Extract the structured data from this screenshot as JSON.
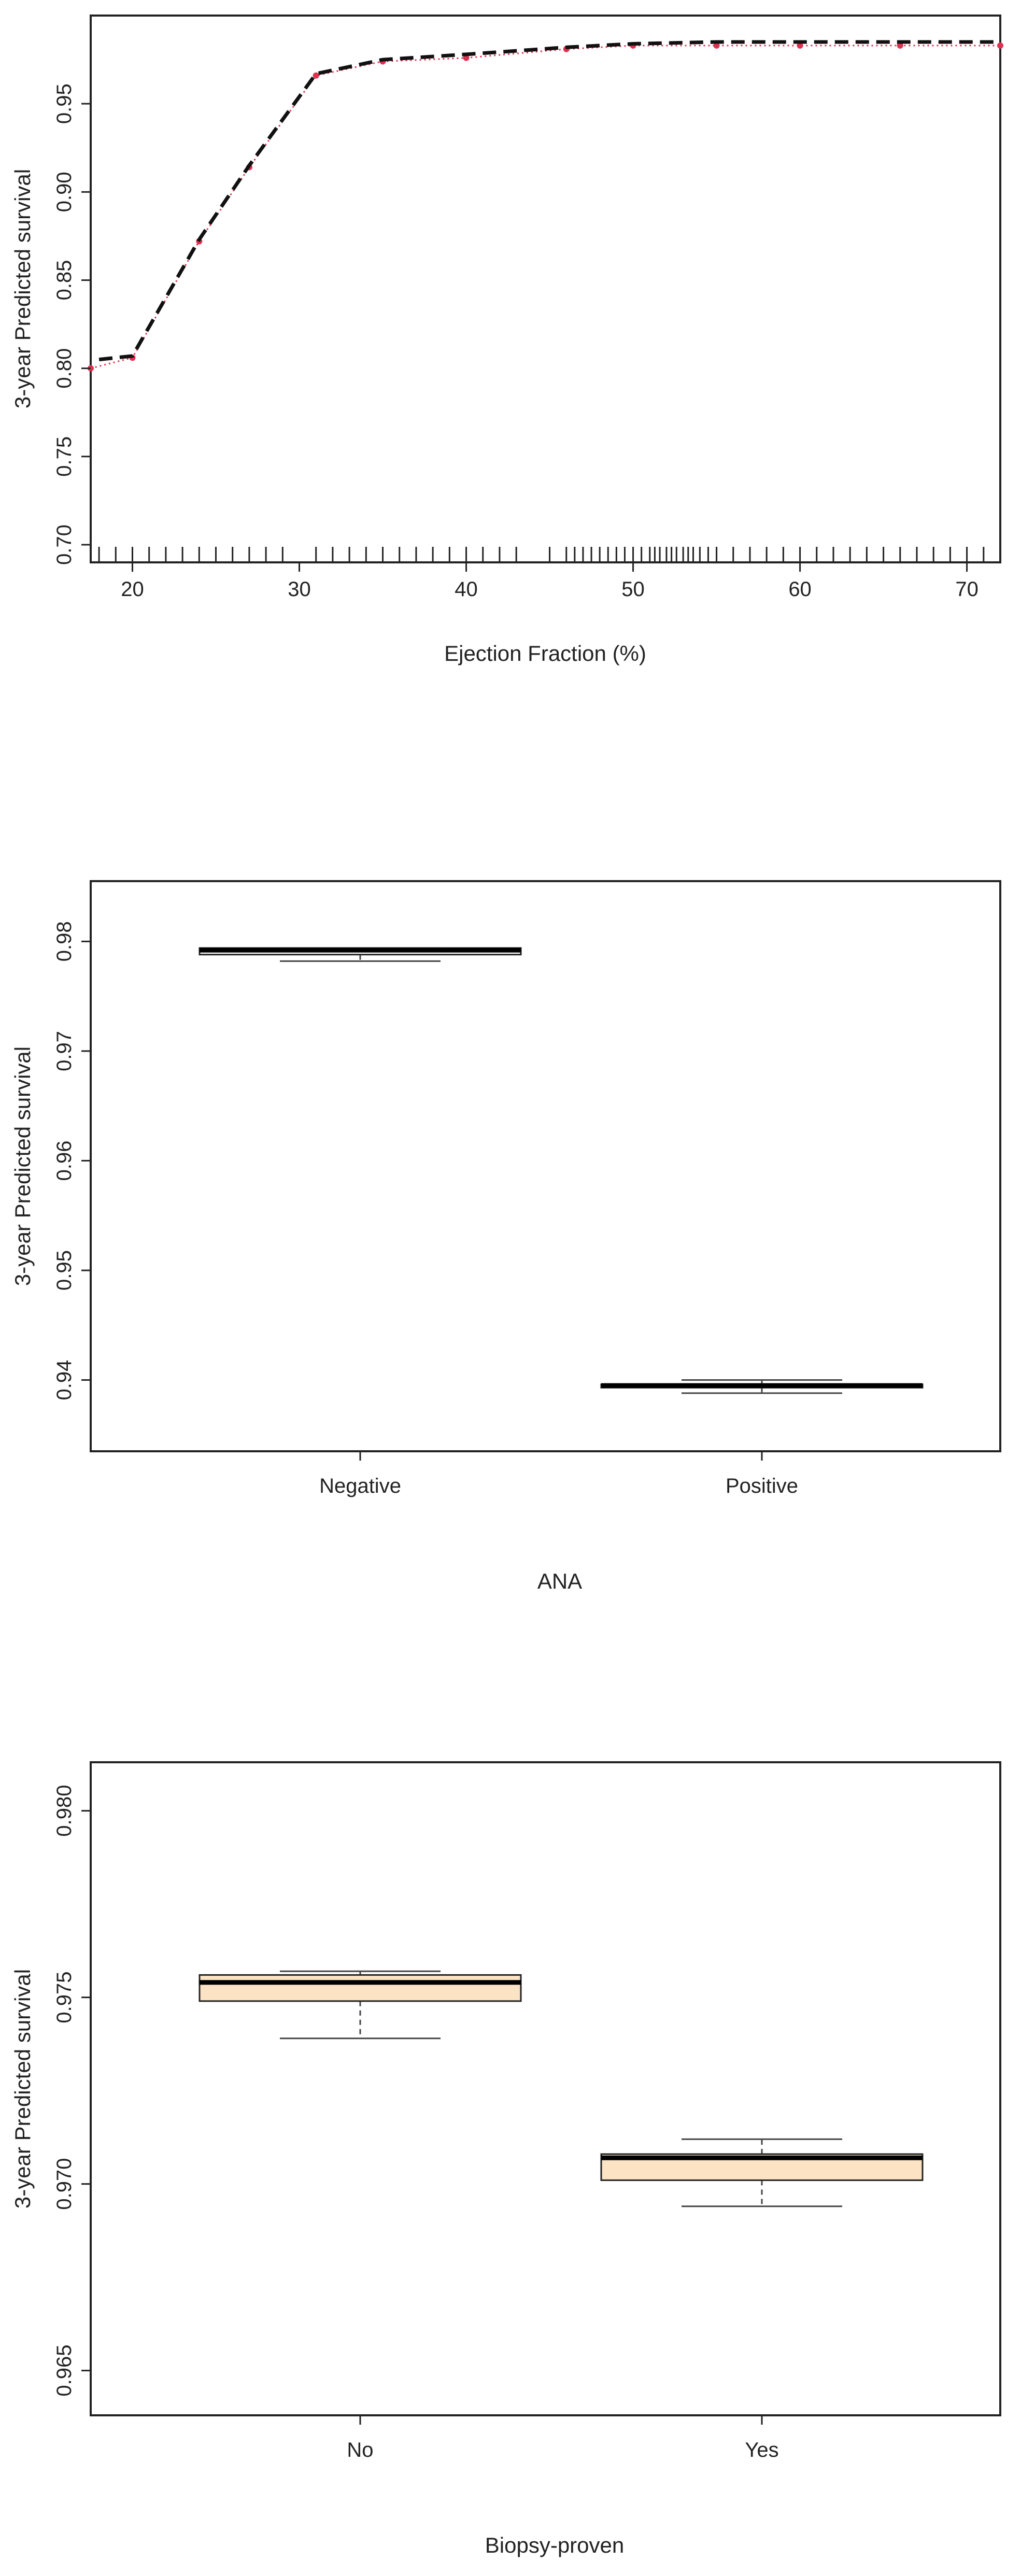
{
  "chart_data": [
    {
      "type": "line",
      "title": "",
      "xlabel": "Ejection Fraction (%)",
      "ylabel": "3-year Predicted survival",
      "xlim": [
        17.5,
        72
      ],
      "ylim": [
        0.69,
        1.0
      ],
      "xticks": [
        20,
        30,
        40,
        50,
        60,
        70
      ],
      "xtick_labels": [
        "20",
        "30",
        "40",
        "50",
        "60",
        "70"
      ],
      "yticks": [
        0.7,
        0.75,
        0.8,
        0.85,
        0.9,
        0.95
      ],
      "ytick_labels": [
        "0.70",
        "0.75",
        "0.80",
        "0.85",
        "0.90",
        "0.95"
      ],
      "grid": false,
      "series": [
        {
          "style": "dashed-black",
          "color": "#111111",
          "x": [
            18,
            20,
            24,
            27,
            31,
            35,
            40,
            46,
            50,
            55,
            60,
            72
          ],
          "y": [
            0.805,
            0.807,
            0.873,
            0.915,
            0.967,
            0.975,
            0.978,
            0.982,
            0.984,
            0.985,
            0.985,
            0.985
          ]
        },
        {
          "style": "dotted-red-with-points",
          "color": "#e03050",
          "x": [
            17.5,
            20,
            24,
            27,
            31,
            35,
            40,
            46,
            50,
            55,
            60,
            66,
            72
          ],
          "y": [
            0.8,
            0.806,
            0.872,
            0.914,
            0.966,
            0.974,
            0.976,
            0.981,
            0.983,
            0.983,
            0.983,
            0.983,
            0.983
          ]
        }
      ],
      "rug_x": [
        18,
        19,
        20,
        21,
        22,
        23,
        24,
        25,
        26,
        27,
        28,
        29,
        31,
        32,
        33,
        34,
        35,
        36,
        37,
        38,
        39,
        40,
        41,
        42,
        43,
        45,
        46,
        46.5,
        47,
        47.5,
        48,
        48.5,
        49,
        49.5,
        50,
        50.5,
        51,
        51.3,
        51.6,
        52,
        52.3,
        52.6,
        53,
        53.3,
        53.6,
        54,
        54.5,
        55,
        56,
        57,
        58,
        59,
        60,
        61,
        62,
        63,
        64,
        65,
        66,
        67,
        68,
        69,
        70,
        71
      ]
    },
    {
      "type": "box",
      "title": "",
      "xlabel": "ANA",
      "ylabel": "3-year Predicted survival",
      "categories": [
        "Negative",
        "Positive"
      ],
      "ylim": [
        0.9335,
        0.9855
      ],
      "yticks": [
        0.94,
        0.95,
        0.96,
        0.97,
        0.98
      ],
      "ytick_labels": [
        "0.94",
        "0.95",
        "0.96",
        "0.97",
        "0.98"
      ],
      "fill": "#ffffff",
      "boxes": [
        {
          "min": 0.9782,
          "q1": 0.9788,
          "median": 0.9792,
          "q3": 0.9794,
          "max": 0.9794
        },
        {
          "min": 0.9388,
          "q1": 0.9393,
          "median": 0.9395,
          "q3": 0.9396,
          "max": 0.94
        }
      ]
    },
    {
      "type": "box",
      "title": "",
      "xlabel": "Biopsy-proven",
      "ylabel": "3-year Predicted survival",
      "categories": [
        "No",
        "Yes"
      ],
      "ylim": [
        0.9638,
        0.9813
      ],
      "yticks": [
        0.965,
        0.97,
        0.975,
        0.98
      ],
      "ytick_labels": [
        "0.965",
        "0.970",
        "0.975",
        "0.980"
      ],
      "fill": "#fbe3c4",
      "boxes": [
        {
          "min": 0.9739,
          "q1": 0.9749,
          "median": 0.9754,
          "q3": 0.9756,
          "max": 0.9757
        },
        {
          "min": 0.9694,
          "q1": 0.9701,
          "median": 0.9707,
          "q3": 0.9708,
          "max": 0.9712
        }
      ]
    }
  ]
}
